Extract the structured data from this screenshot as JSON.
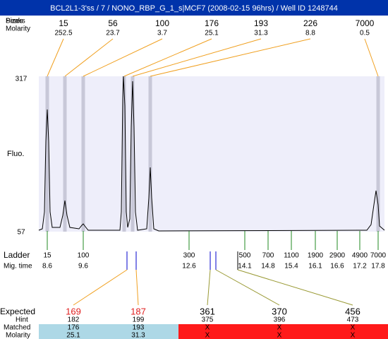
{
  "header": {
    "title": "BCL2L1-3'ss / 7 / NONO_RBP_G_1_s|MCF7 (2008-02-15 96hrs) / Well ID 1248744"
  },
  "top_labels": {
    "peaks": "Peaks",
    "sizes": "Sizes",
    "molarity": "Molarity"
  },
  "peaks": [
    {
      "size": 15,
      "molarity": 252.5
    },
    {
      "size": 56,
      "molarity": 23.7
    },
    {
      "size": 100,
      "molarity": 3.7
    },
    {
      "size": 176,
      "molarity": 25.1
    },
    {
      "size": 193,
      "molarity": 31.3
    },
    {
      "size": 226,
      "molarity": 8.8
    },
    {
      "size": 7000,
      "molarity": 0.5
    }
  ],
  "axis": {
    "label": "Fluo.",
    "top": 317,
    "bottom": 57
  },
  "ladder": {
    "label": "Ladder",
    "mig_label": "Mig. time",
    "bands": [
      {
        "size": 15,
        "mig_time": 8.6
      },
      {
        "size": 100,
        "mig_time": 9.6
      },
      {
        "size": 300,
        "mig_time": 12.6
      },
      {
        "size": 500,
        "mig_time": 14.1
      },
      {
        "size": 700,
        "mig_time": 14.8
      },
      {
        "size": 1100,
        "mig_time": 15.4
      },
      {
        "size": 1900,
        "mig_time": 16.1
      },
      {
        "size": 2900,
        "mig_time": 16.6
      },
      {
        "size": 4900,
        "mig_time": 17.2
      },
      {
        "size": 7000,
        "mig_time": 17.8
      }
    ]
  },
  "expected": {
    "label": "Expected",
    "hint_label": "Hint",
    "matched_label": "Matched",
    "molarity_label": "Molarity",
    "items": [
      {
        "expected": 169,
        "hint": 182,
        "matched": 176,
        "molarity": 25.1
      },
      {
        "expected": 187,
        "hint": 199,
        "matched": 193,
        "molarity": 31.3
      },
      {
        "expected": 361,
        "hint": 375,
        "matched": "X",
        "molarity": "X"
      },
      {
        "expected": 370,
        "hint": 396,
        "matched": "X",
        "molarity": "X"
      },
      {
        "expected": 456,
        "hint": 473,
        "matched": "X",
        "molarity": "X"
      }
    ]
  }
}
